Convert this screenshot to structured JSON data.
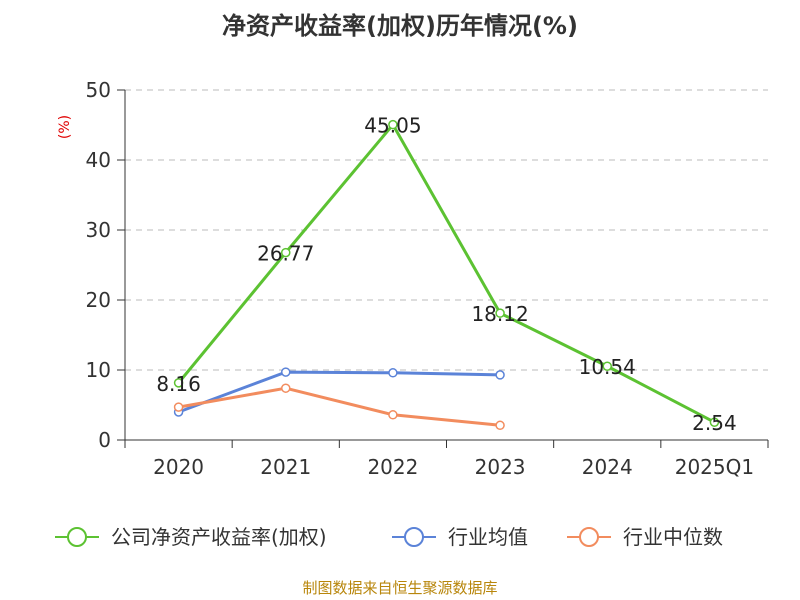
{
  "chart_data": {
    "type": "line",
    "title": "净资产收益率(加权)历年情况(%)",
    "ylabel": "(%)",
    "xlabel": "",
    "categories": [
      "2020",
      "2021",
      "2022",
      "2023",
      "2024",
      "2025Q1"
    ],
    "ylim": [
      0,
      50
    ],
    "yticks": [
      0,
      10,
      20,
      30,
      40,
      50
    ],
    "grid": true,
    "legend_position": "bottom",
    "series": [
      {
        "name": "公司净资产收益率(加权)",
        "color": "#5cc232",
        "values": [
          8.16,
          26.77,
          45.05,
          18.12,
          10.54,
          2.54
        ],
        "labels": [
          "8.16",
          "26.77",
          "45.05",
          "18.12",
          "10.54",
          "2.54"
        ]
      },
      {
        "name": "行业均值",
        "color": "#5b83d8",
        "values": [
          4.0,
          9.7,
          9.6,
          9.3,
          null,
          null
        ]
      },
      {
        "name": "行业中位数",
        "color": "#f28c5e",
        "values": [
          4.7,
          7.4,
          3.6,
          2.1,
          null,
          null
        ]
      }
    ]
  },
  "source": "制图数据来自恒生聚源数据库"
}
